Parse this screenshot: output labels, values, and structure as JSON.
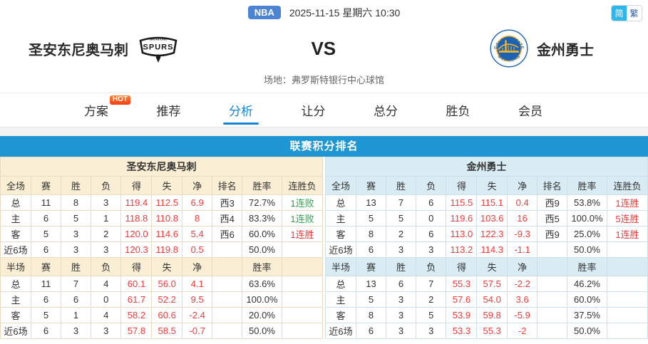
{
  "top_bar": {
    "league_badge": "NBA",
    "datetime": "2025-11-15 星期六 10:30",
    "lang_simplified": "简",
    "lang_traditional": "繁"
  },
  "match": {
    "home_name": "圣安东尼奥马刺",
    "away_name": "金州勇士",
    "vs_label": "VS",
    "venue": "场地：弗罗斯特银行中心球馆",
    "home_logo_top": "SAN ANTONIO",
    "home_logo_main": "SPURS",
    "away_logo_top": "GOLDEN STATE",
    "away_logo_bottom": "WARRIORS"
  },
  "tabs": {
    "plan": "方案",
    "plan_badge": "HOT",
    "recommend": "推荐",
    "analysis": "分析",
    "spread": "让分",
    "total": "总分",
    "winloss": "胜负",
    "member": "会员"
  },
  "section_title": "联赛积分排名",
  "tables": {
    "left": {
      "team": "圣安东尼奥马刺",
      "full_header": [
        "全场",
        "赛",
        "胜",
        "负",
        "得",
        "失",
        "净",
        "排名",
        "胜率",
        "连胜负"
      ],
      "full_rows": [
        [
          "总",
          "11",
          "8",
          "3",
          "119.4",
          "112.5",
          "6.9",
          "西3",
          "72.7%",
          "1连败"
        ],
        [
          "主",
          "6",
          "5",
          "1",
          "118.8",
          "110.8",
          "8",
          "西4",
          "83.3%",
          "1连败"
        ],
        [
          "客",
          "5",
          "3",
          "2",
          "120.0",
          "114.6",
          "5.4",
          "西6",
          "60.0%",
          "1连胜"
        ],
        [
          "近6场",
          "6",
          "3",
          "3",
          "120.3",
          "119.8",
          "0.5",
          "",
          "50.0%",
          ""
        ]
      ],
      "half_header": [
        "半场",
        "赛",
        "胜",
        "负",
        "得",
        "失",
        "净",
        "",
        "胜率",
        ""
      ],
      "half_rows": [
        [
          "总",
          "11",
          "7",
          "4",
          "60.1",
          "56.0",
          "4.1",
          "",
          "63.6%",
          ""
        ],
        [
          "主",
          "6",
          "6",
          "0",
          "61.7",
          "52.2",
          "9.5",
          "",
          "100.0%",
          ""
        ],
        [
          "客",
          "5",
          "1",
          "4",
          "58.2",
          "60.6",
          "-2.4",
          "",
          "20.0%",
          ""
        ],
        [
          "近6场",
          "6",
          "3",
          "3",
          "57.8",
          "58.5",
          "-0.7",
          "",
          "50.0%",
          ""
        ]
      ]
    },
    "right": {
      "team": "金州勇士",
      "full_header": [
        "全场",
        "赛",
        "胜",
        "负",
        "得",
        "失",
        "净",
        "排名",
        "胜率",
        "连胜负"
      ],
      "full_rows": [
        [
          "总",
          "13",
          "7",
          "6",
          "115.5",
          "115.1",
          "0.4",
          "西9",
          "53.8%",
          "1连胜"
        ],
        [
          "主",
          "5",
          "5",
          "0",
          "119.6",
          "103.6",
          "16",
          "西5",
          "100.0%",
          "5连胜"
        ],
        [
          "客",
          "8",
          "2",
          "6",
          "113.0",
          "122.3",
          "-9.3",
          "西9",
          "25.0%",
          "1连胜"
        ],
        [
          "近6场",
          "6",
          "3",
          "3",
          "113.2",
          "114.3",
          "-1.1",
          "",
          "50.0%",
          ""
        ]
      ],
      "half_header": [
        "半场",
        "赛",
        "胜",
        "负",
        "得",
        "失",
        "净",
        "",
        "胜率",
        ""
      ],
      "half_rows": [
        [
          "总",
          "13",
          "6",
          "7",
          "55.3",
          "57.5",
          "-2.2",
          "",
          "46.2%",
          ""
        ],
        [
          "主",
          "5",
          "3",
          "2",
          "57.6",
          "54.0",
          "3.6",
          "",
          "60.0%",
          ""
        ],
        [
          "客",
          "8",
          "3",
          "5",
          "53.9",
          "59.8",
          "-5.9",
          "",
          "37.5%",
          ""
        ],
        [
          "近6场",
          "6",
          "3",
          "3",
          "53.3",
          "55.3",
          "-2",
          "",
          "50.0%",
          ""
        ]
      ]
    }
  },
  "colors": {
    "banner_blue": "#1d96d3",
    "tab_active_blue": "#1786d8",
    "score_red": "#f03b3b",
    "streak_green": "#2ea44f",
    "nba_badge_blue": "#4c84d3",
    "lang_active_cyan": "#2eb7ea",
    "left_header_bg": "#faefd4",
    "right_header_bg": "#d9ecf4"
  }
}
